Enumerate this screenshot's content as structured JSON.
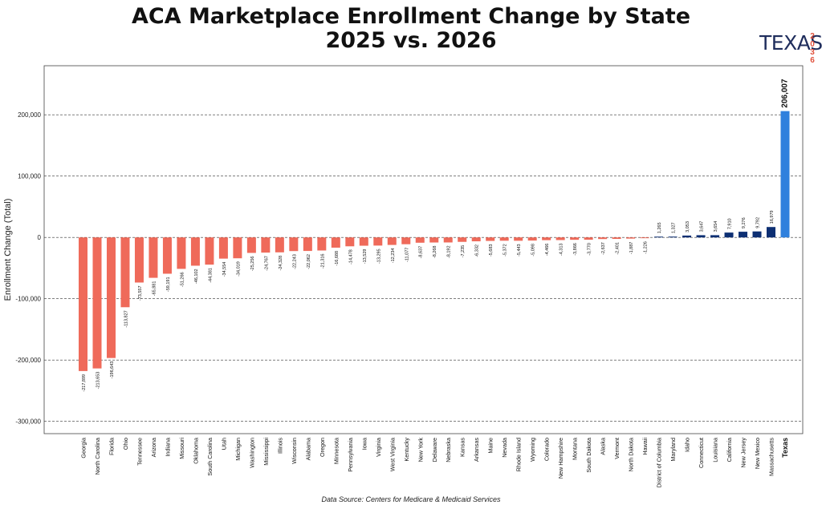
{
  "title_line1": "ACA Marketplace Enrollment Change by State",
  "title_line2": "2025 vs. 2026",
  "logo": {
    "word": "TEXAS",
    "year_digits": [
      "2",
      "0",
      "3",
      "6"
    ]
  },
  "source": "Data Source: Centers for Medicare & Medicaid Services",
  "colors": {
    "negative": "#ef6a5a",
    "positive": "#0d2f73",
    "highlight": "#2f80dd",
    "grid": "#333333"
  },
  "chart_data": {
    "type": "bar",
    "ylabel": "Enrollment Change (Total)",
    "ylim": [
      -320000,
      280000
    ],
    "yticks": [
      -300000,
      -200000,
      -100000,
      0,
      100000,
      200000
    ],
    "ytick_labels": [
      "-300,000",
      "-200,000",
      "-100,000",
      "0",
      "100,000",
      "200,000"
    ],
    "grid": "horizontal dashed",
    "highlight": "Texas",
    "categories": [
      "Georgia",
      "North Carolina",
      "Florida",
      "Ohio",
      "Tennessee",
      "Arizona",
      "Indiana",
      "Missouri",
      "Oklahoma",
      "South Carolina",
      "Utah",
      "Michigan",
      "Washington",
      "Mississippi",
      "Illinois",
      "Wisconsin",
      "Alabama",
      "Oregon",
      "Minnesota",
      "Pennsylvania",
      "Iowa",
      "Virginia",
      "West Virginia",
      "Kentucky",
      "New York",
      "Delaware",
      "Nebraska",
      "Kansas",
      "Arkansas",
      "Maine",
      "Nevada",
      "Rhode Island",
      "Wyoming",
      "Colorado",
      "New Hampshire",
      "Montana",
      "South Dakota",
      "Alaska",
      "Vermont",
      "North Dakota",
      "Hawaii",
      "District of Columbia",
      "Maryland",
      "Idaho",
      "Connecticut",
      "Louisiana",
      "California",
      "New Jersey",
      "New Mexico",
      "Massachusetts",
      "Texas"
    ],
    "values": [
      -217899,
      -213653,
      -196643,
      -113827,
      -73557,
      -65881,
      -59191,
      -51266,
      -46102,
      -44381,
      -34554,
      -34019,
      -25256,
      -24767,
      -24328,
      -22243,
      -22062,
      -21316,
      -16688,
      -14478,
      -13529,
      -13295,
      -12234,
      -11077,
      -8637,
      -8268,
      -8192,
      -7235,
      -6332,
      -5683,
      -5372,
      -5443,
      -5098,
      -4466,
      -4313,
      -3866,
      -3770,
      -2637,
      -2401,
      -1887,
      -1226,
      1265,
      1327,
      3053,
      3647,
      3654,
      7910,
      9276,
      9792,
      16979,
      206007
    ],
    "value_labels": [
      "-217,899",
      "-213,653",
      "-196,643",
      "-113,827",
      "-73,557",
      "-65,881",
      "-59,191",
      "-51,266",
      "-46,102",
      "-44,381",
      "-34,554",
      "-34,019",
      "-25,256",
      "-24,767",
      "-24,328",
      "-22,243",
      "-22,062",
      "-21,316",
      "-16,688",
      "-14,478",
      "-13,529",
      "-13,295",
      "-12,234",
      "-11,077",
      "-8,637",
      "-8,268",
      "-8,192",
      "-7,235",
      "-6,332",
      "-5,683",
      "-5,372",
      "-5,443",
      "-5,098",
      "-4,466",
      "-4,313",
      "-3,866",
      "-3,770",
      "-2,637",
      "-2,401",
      "-1,887",
      "-1,226",
      "1,265",
      "1,327",
      "3,053",
      "3,647",
      "3,654",
      "7,910",
      "9,276",
      "9,792",
      "16,979",
      "206,007"
    ]
  }
}
